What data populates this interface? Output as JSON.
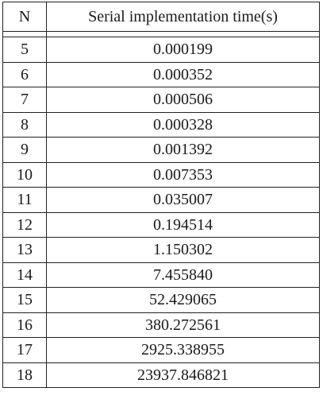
{
  "table": {
    "headers": {
      "n": "N",
      "time": "Serial implementation time(s)"
    },
    "rows": [
      {
        "n": "5",
        "time": "0.000199"
      },
      {
        "n": "6",
        "time": "0.000352"
      },
      {
        "n": "7",
        "time": "0.000506"
      },
      {
        "n": "8",
        "time": "0.000328"
      },
      {
        "n": "9",
        "time": "0.001392"
      },
      {
        "n": "10",
        "time": "0.007353"
      },
      {
        "n": "11",
        "time": "0.035007"
      },
      {
        "n": "12",
        "time": "0.194514"
      },
      {
        "n": "13",
        "time": "1.150302"
      },
      {
        "n": "14",
        "time": "7.455840"
      },
      {
        "n": "15",
        "time": "52.429065"
      },
      {
        "n": "16",
        "time": "380.272561"
      },
      {
        "n": "17",
        "time": "2925.338955"
      },
      {
        "n": "18",
        "time": "23937.846821"
      }
    ]
  }
}
